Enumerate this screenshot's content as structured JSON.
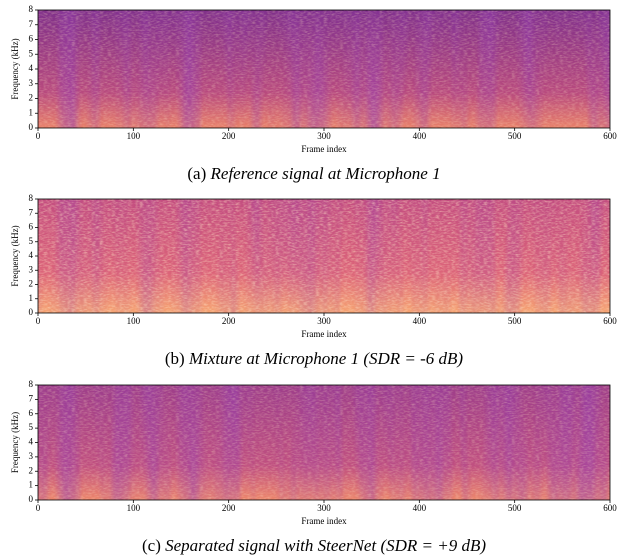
{
  "chart_data": [
    {
      "type": "spectrogram",
      "xlabel": "Frame index",
      "ylabel": "Frequency (kHz)",
      "xlim": [
        0,
        600
      ],
      "ylim": [
        0,
        8
      ],
      "xticks": [
        0,
        100,
        200,
        300,
        400,
        500,
        600
      ],
      "yticks": [
        0,
        1,
        2,
        3,
        4,
        5,
        6,
        7,
        8
      ],
      "caption_label": "(a)",
      "caption": "Reference signal at Microphone 1"
    },
    {
      "type": "spectrogram",
      "xlabel": "Frame index",
      "ylabel": "Frequency (kHz)",
      "xlim": [
        0,
        600
      ],
      "ylim": [
        0,
        8
      ],
      "xticks": [
        0,
        100,
        200,
        300,
        400,
        500,
        600
      ],
      "yticks": [
        0,
        1,
        2,
        3,
        4,
        5,
        6,
        7,
        8
      ],
      "caption_label": "(b)",
      "caption": "Mixture at Microphone 1 (SDR = -6 dB)"
    },
    {
      "type": "spectrogram",
      "xlabel": "Frame index",
      "ylabel": "Frequency (kHz)",
      "xlim": [
        0,
        600
      ],
      "ylim": [
        0,
        8
      ],
      "xticks": [
        0,
        100,
        200,
        300,
        400,
        500,
        600
      ],
      "yticks": [
        0,
        1,
        2,
        3,
        4,
        5,
        6,
        7,
        8
      ],
      "caption_label": "(c)",
      "caption": "Separated signal with SteerNet (SDR = +9 dB)"
    }
  ]
}
